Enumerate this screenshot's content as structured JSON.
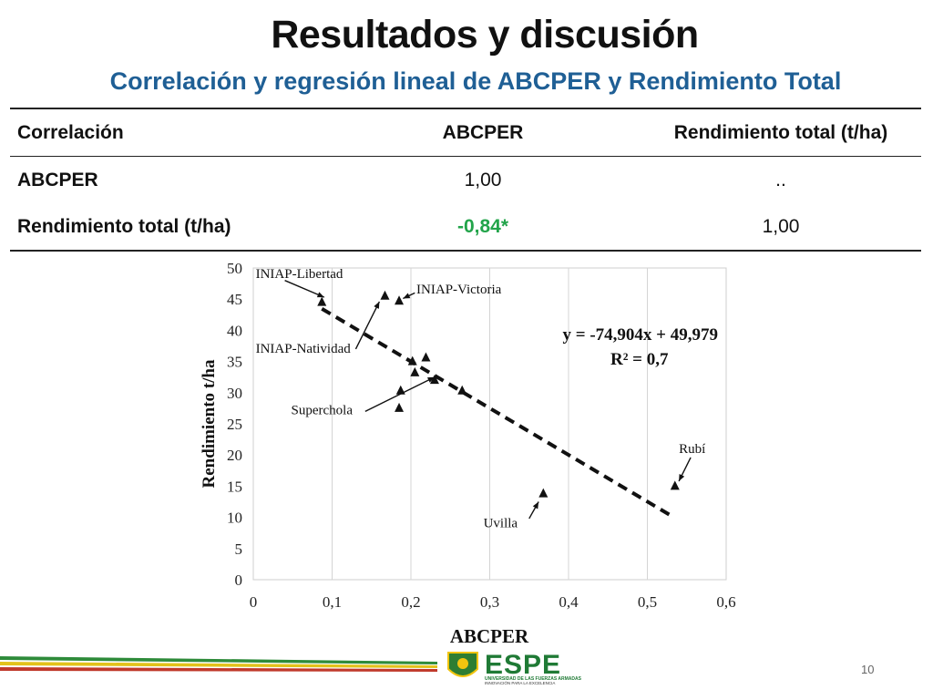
{
  "slide": {
    "title": "Resultados y discusión",
    "subtitle": "Correlación y regresión lineal de ABCPER y Rendimiento Total",
    "page_number": "10"
  },
  "table": {
    "headers": [
      "Correlación",
      "ABCPER",
      "Rendimiento total (t/ha)"
    ],
    "rows": [
      [
        "ABCPER",
        "1,00",
        ".."
      ],
      [
        "Rendimiento total (t/ha)",
        "-0,84*",
        "1,00"
      ]
    ],
    "highlight_color": "#22a44a"
  },
  "logo": {
    "name": "ESPE",
    "line1": "UNIVERSIDAD DE LAS FUERZAS ARMADAS",
    "line2": "INNOVACIÓN PARA LA EXCELENCIA"
  },
  "chart_data": {
    "type": "scatter",
    "xlabel": "ABCPER",
    "ylabel": "Rendimiento t/ha",
    "xlim": [
      0,
      0.6
    ],
    "ylim": [
      0,
      50
    ],
    "xticks": [
      "0",
      "0,1",
      "0,2",
      "0,3",
      "0,4",
      "0,5",
      "0,6"
    ],
    "yticks": [
      "0",
      "5",
      "10",
      "15",
      "20",
      "25",
      "30",
      "35",
      "40",
      "45",
      "50"
    ],
    "grid": "vertical",
    "points": [
      {
        "x": 0.087,
        "y": 44.5
      },
      {
        "x": 0.167,
        "y": 45.5
      },
      {
        "x": 0.185,
        "y": 44.7
      },
      {
        "x": 0.187,
        "y": 30.3
      },
      {
        "x": 0.185,
        "y": 27.5
      },
      {
        "x": 0.202,
        "y": 35.0
      },
      {
        "x": 0.205,
        "y": 33.2
      },
      {
        "x": 0.219,
        "y": 35.6
      },
      {
        "x": 0.23,
        "y": 32.0
      },
      {
        "x": 0.265,
        "y": 30.3
      },
      {
        "x": 0.368,
        "y": 13.8
      },
      {
        "x": 0.535,
        "y": 15.0
      }
    ],
    "regression": {
      "equation": "y = -74,904x + 49,979",
      "r2": "R² = 0,7",
      "slope": -74.904,
      "intercept": 49.979,
      "x_range": [
        0.087,
        0.533
      ]
    },
    "annotations": [
      {
        "label": "INIAP-Libertad",
        "pos": {
          "x": 0.003,
          "y": 48.4
        },
        "arrow_from": {
          "x": 0.04,
          "y": 48.0
        },
        "arrow_to": {
          "x": 0.09,
          "y": 45.3
        }
      },
      {
        "label": "INIAP-Victoria",
        "pos": {
          "x": 0.207,
          "y": 45.9
        },
        "arrow_from": {
          "x": 0.205,
          "y": 46.0
        },
        "arrow_to": {
          "x": 0.19,
          "y": 45.1
        }
      },
      {
        "label": "INIAP-Natividad",
        "pos": {
          "x": 0.003,
          "y": 36.4
        },
        "arrow_from": {
          "x": 0.13,
          "y": 37.0
        },
        "arrow_to": {
          "x": 0.16,
          "y": 44.6
        }
      },
      {
        "label": "Superchola",
        "pos": {
          "x": 0.048,
          "y": 26.5
        },
        "arrow_from": {
          "x": 0.142,
          "y": 27.0
        },
        "arrow_to": {
          "x": 0.23,
          "y": 32.5
        }
      },
      {
        "label": "Rubí",
        "pos": {
          "x": 0.54,
          "y": 20.3
        },
        "arrow_from": {
          "x": 0.555,
          "y": 19.6
        },
        "arrow_to": {
          "x": 0.54,
          "y": 15.8
        }
      },
      {
        "label": "Uvilla",
        "pos": {
          "x": 0.292,
          "y": 8.4
        },
        "arrow_from": {
          "x": 0.35,
          "y": 9.8
        },
        "arrow_to": {
          "x": 0.362,
          "y": 12.5
        }
      }
    ]
  }
}
